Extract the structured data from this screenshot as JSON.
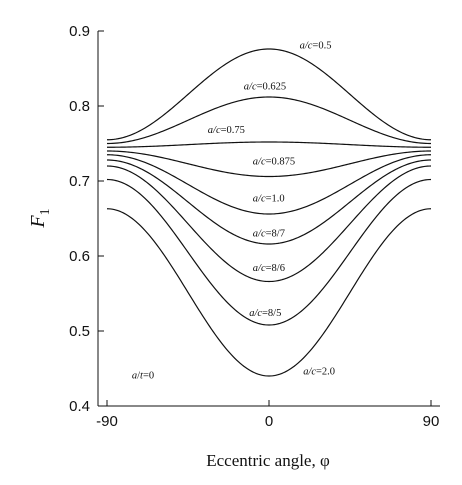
{
  "chart_data": {
    "type": "line",
    "title": "",
    "xlabel": "Eccentric angle, φ",
    "ylabel": "F",
    "ylabel_sub": "1",
    "xlim": [
      -95,
      95
    ],
    "ylim": [
      0.4,
      0.9
    ],
    "x_ticks": [
      -90,
      0,
      90
    ],
    "x_tick_labels": [
      "-90",
      "0",
      "90"
    ],
    "y_ticks": [
      0.4,
      0.5,
      0.6,
      0.7,
      0.8,
      0.9
    ],
    "y_tick_labels": [
      "0.4",
      "0.5",
      "0.6",
      "0.7",
      "0.8",
      "0.9"
    ],
    "grid": false,
    "annotation": {
      "text": "a/t=0",
      "x": -70,
      "y": 0.437
    },
    "series": [
      {
        "name": "a/c=0.5",
        "label_prefix": "a/c",
        "label_value": "=0.5",
        "edge": 0.755,
        "mid": 0.876,
        "label_xy": [
          17,
          0.877
        ]
      },
      {
        "name": "a/c=0.625",
        "label_prefix": "a/c",
        "label_value": "=0.625",
        "edge": 0.75,
        "mid": 0.812,
        "label_xy": [
          -14,
          0.822
        ]
      },
      {
        "name": "a/c=0.75",
        "label_prefix": "a/c",
        "label_value": "=0.75",
        "edge": 0.745,
        "mid": 0.752,
        "label_xy": [
          -34,
          0.764
        ]
      },
      {
        "name": "a/c=0.875",
        "label_prefix": "a/c",
        "label_value": "=0.875",
        "edge": 0.74,
        "mid": 0.706,
        "label_xy": [
          -9,
          0.722
        ]
      },
      {
        "name": "a/c=1.0",
        "label_prefix": "a/c",
        "label_value": "=1.0",
        "edge": 0.735,
        "mid": 0.656,
        "label_xy": [
          -9,
          0.673
        ]
      },
      {
        "name": "a/c=8/7",
        "label_prefix": "a/c",
        "label_value": "=8/7",
        "edge": 0.728,
        "mid": 0.616,
        "label_xy": [
          -9,
          0.626
        ]
      },
      {
        "name": "a/c=8/6",
        "label_prefix": "a/c",
        "label_value": "=8/6",
        "edge": 0.72,
        "mid": 0.566,
        "label_xy": [
          -9,
          0.58
        ]
      },
      {
        "name": "a/c=8/5",
        "label_prefix": "a/c",
        "label_value": "=8/5",
        "edge": 0.702,
        "mid": 0.508,
        "label_xy": [
          -11,
          0.52
        ]
      },
      {
        "name": "a/c=2.0",
        "label_prefix": "a/c",
        "label_value": "=2.0",
        "edge": 0.663,
        "mid": 0.44,
        "label_xy": [
          19,
          0.442
        ]
      }
    ]
  }
}
